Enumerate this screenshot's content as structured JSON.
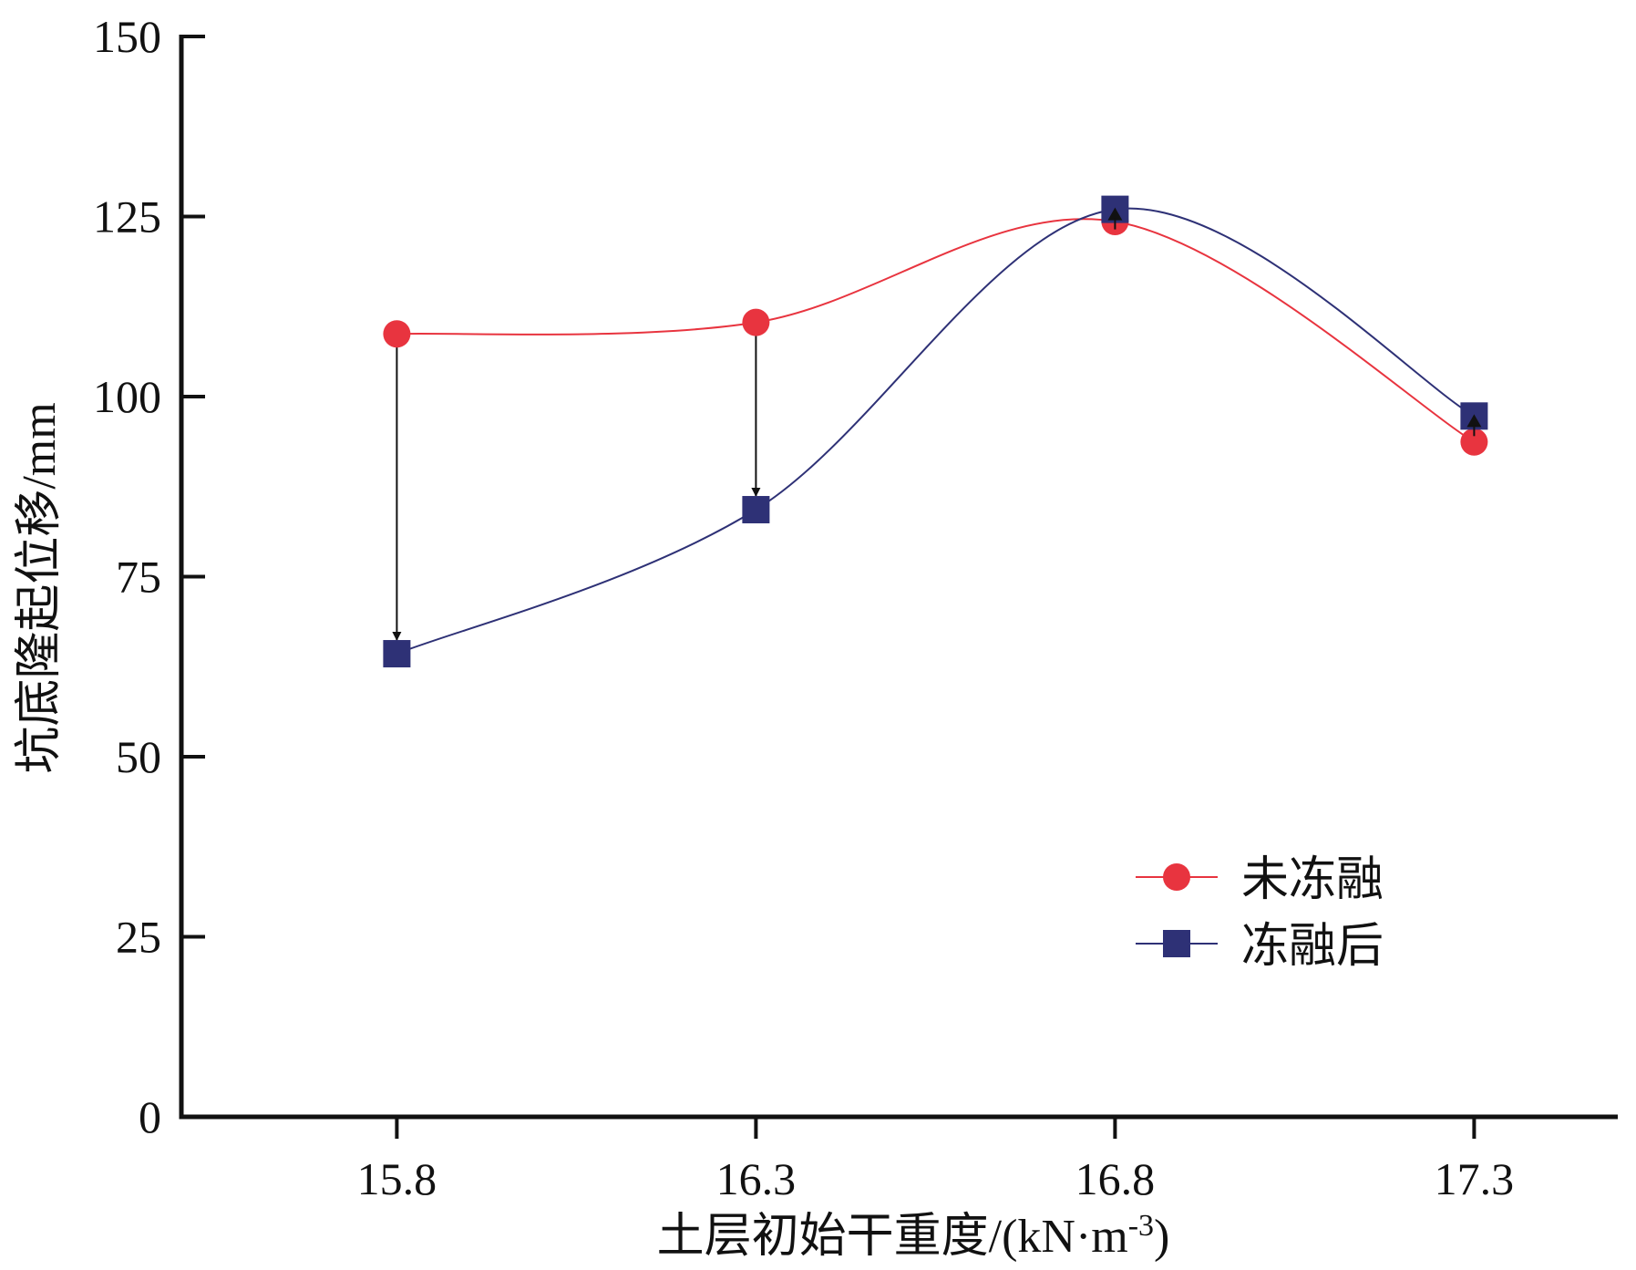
{
  "chart_data": {
    "type": "line",
    "title": "",
    "xlabel": "土层初始干重度/(kN·m",
    "xlabel_sup": "-3",
    "xlabel_close": ")",
    "ylabel": "坑底隆起位移/mm",
    "categories": [
      "15.8",
      "16.3",
      "16.8",
      "17.3"
    ],
    "x": [
      15.8,
      16.3,
      16.8,
      17.3
    ],
    "xlim": [
      15.5,
      17.5
    ],
    "ylim": [
      0,
      150
    ],
    "yticks": [
      0,
      25,
      50,
      75,
      100,
      125,
      150
    ],
    "grid": false,
    "legend_position": "lower-right",
    "series": [
      {
        "name": "未冻融",
        "marker": "circle",
        "color": "#e8343f",
        "values": [
          108.7,
          110.3,
          124.3,
          93.7
        ]
      },
      {
        "name": "冻融后",
        "marker": "square",
        "color": "#2e3176",
        "values": [
          64.3,
          84.3,
          126.0,
          97.3
        ]
      }
    ],
    "annotations": [
      {
        "type": "arrow",
        "x": 15.8,
        "from": 108.7,
        "to": 64.3
      },
      {
        "type": "arrow",
        "x": 16.3,
        "from": 110.3,
        "to": 84.3
      },
      {
        "type": "arrow",
        "x": 16.8,
        "from": 124.3,
        "to": 126.0
      },
      {
        "type": "arrow",
        "x": 17.3,
        "from": 93.7,
        "to": 97.3
      }
    ]
  }
}
